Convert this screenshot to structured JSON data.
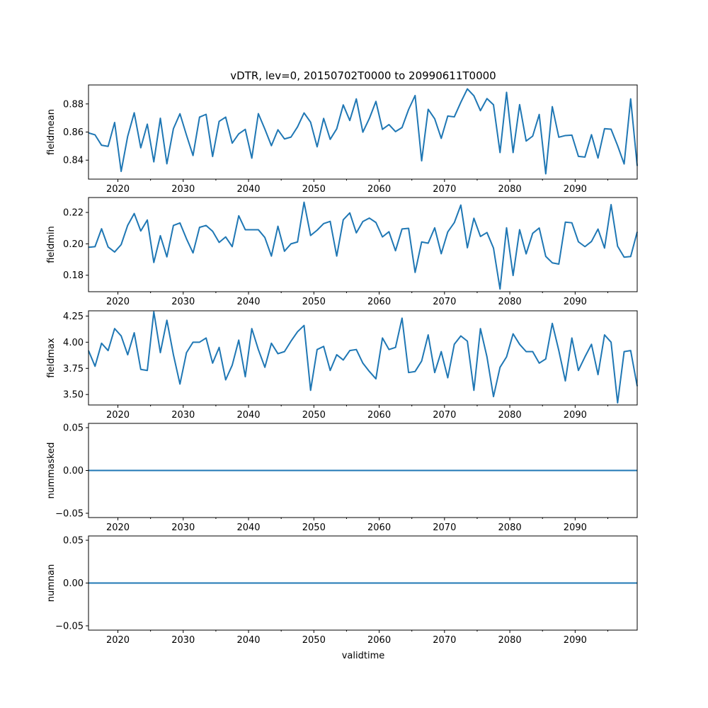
{
  "chart_data": {
    "type": "line",
    "title": "vDTR, lev=0, 20150702T0000 to 20990611T0000",
    "xlabel": "validtime",
    "xlim": [
      2015.5,
      2099.5
    ],
    "x_ticks": [
      2020,
      2030,
      2040,
      2050,
      2060,
      2070,
      2080,
      2090
    ],
    "x_tick_labels": [
      "2020",
      "2030",
      "2040",
      "2050",
      "2060",
      "2070",
      "2080",
      "2090"
    ],
    "series_color": "#1f77b4",
    "x": [
      2015.5,
      2016.5,
      2017.5,
      2018.5,
      2019.5,
      2020.5,
      2021.5,
      2022.5,
      2023.5,
      2024.5,
      2025.5,
      2026.5,
      2027.5,
      2028.5,
      2029.5,
      2030.5,
      2031.5,
      2032.5,
      2033.5,
      2034.5,
      2035.5,
      2036.5,
      2037.5,
      2038.5,
      2039.5,
      2040.5,
      2041.5,
      2042.5,
      2043.5,
      2044.5,
      2045.5,
      2046.5,
      2047.5,
      2048.5,
      2049.5,
      2050.5,
      2051.5,
      2052.5,
      2053.5,
      2054.5,
      2055.5,
      2056.5,
      2057.5,
      2058.5,
      2059.5,
      2060.5,
      2061.5,
      2062.5,
      2063.5,
      2064.5,
      2065.5,
      2066.5,
      2067.5,
      2068.5,
      2069.5,
      2070.5,
      2071.5,
      2072.5,
      2073.5,
      2074.5,
      2075.5,
      2076.5,
      2077.5,
      2078.5,
      2079.5,
      2080.5,
      2081.5,
      2082.5,
      2083.5,
      2084.5,
      2085.5,
      2086.5,
      2087.5,
      2088.5,
      2089.5,
      2090.5,
      2091.5,
      2092.5,
      2093.5,
      2094.5,
      2095.5,
      2096.5,
      2097.5,
      2098.5,
      2099.5
    ],
    "panels": [
      {
        "ylabel": "fieldmean",
        "ylim": [
          0.8265,
          0.8935
        ],
        "y_ticks": [
          0.84,
          0.86,
          0.88
        ],
        "y_tick_labels": [
          "0.84",
          "0.86",
          "0.88"
        ],
        "values": [
          0.8594,
          0.858,
          0.8506,
          0.8498,
          0.8668,
          0.832,
          0.857,
          0.8737,
          0.8488,
          0.8656,
          0.8388,
          0.8698,
          0.8374,
          0.8624,
          0.873,
          0.8578,
          0.8433,
          0.8706,
          0.8726,
          0.8426,
          0.8676,
          0.8706,
          0.8521,
          0.8587,
          0.8619,
          0.8414,
          0.8731,
          0.8621,
          0.8503,
          0.8616,
          0.8551,
          0.8564,
          0.8637,
          0.8736,
          0.867,
          0.8495,
          0.8697,
          0.8548,
          0.8623,
          0.8793,
          0.8682,
          0.8836,
          0.8599,
          0.8697,
          0.8818,
          0.8619,
          0.8653,
          0.8603,
          0.8632,
          0.876,
          0.886,
          0.8395,
          0.8762,
          0.8694,
          0.8555,
          0.8714,
          0.8708,
          0.8812,
          0.8907,
          0.8858,
          0.8752,
          0.8838,
          0.8794,
          0.8454,
          0.8883,
          0.8454,
          0.8795,
          0.8536,
          0.8571,
          0.8725,
          0.8303,
          0.8781,
          0.8563,
          0.8575,
          0.8578,
          0.8427,
          0.8422,
          0.8581,
          0.8415,
          0.8624,
          0.862,
          0.8503,
          0.8373,
          0.8836,
          0.8359
        ]
      },
      {
        "ylabel": "fieldmin",
        "ylim": [
          0.1695,
          0.2295
        ],
        "y_ticks": [
          0.18,
          0.2,
          0.22
        ],
        "y_tick_labels": [
          "0.18",
          "0.20",
          "0.22"
        ],
        "values": [
          0.1978,
          0.1982,
          0.2096,
          0.198,
          0.1948,
          0.1995,
          0.2118,
          0.2193,
          0.2082,
          0.2152,
          0.1881,
          0.2052,
          0.1917,
          0.2117,
          0.2133,
          0.2032,
          0.1942,
          0.2105,
          0.2117,
          0.208,
          0.2009,
          0.2044,
          0.1982,
          0.2179,
          0.209,
          0.209,
          0.209,
          0.204,
          0.1922,
          0.2112,
          0.1953,
          0.2,
          0.2012,
          0.2265,
          0.2053,
          0.2087,
          0.2129,
          0.2143,
          0.1922,
          0.2153,
          0.2197,
          0.207,
          0.2142,
          0.2164,
          0.2136,
          0.2044,
          0.2077,
          0.1956,
          0.2095,
          0.2099,
          0.1818,
          0.2012,
          0.2004,
          0.2102,
          0.1937,
          0.2076,
          0.2135,
          0.2247,
          0.1975,
          0.2163,
          0.2047,
          0.2072,
          0.1973,
          0.1712,
          0.2102,
          0.1798,
          0.209,
          0.1936,
          0.2067,
          0.2101,
          0.192,
          0.1879,
          0.1871,
          0.2138,
          0.2134,
          0.2013,
          0.1982,
          0.2015,
          0.2094,
          0.1973,
          0.225,
          0.1985,
          0.1915,
          0.1919,
          0.2076
        ]
      },
      {
        "ylabel": "fieldmax",
        "ylim": [
          3.4,
          4.3
        ],
        "y_ticks": [
          3.5,
          3.75,
          4.0,
          4.25
        ],
        "y_tick_labels": [
          "3.50",
          "3.75",
          "4.00",
          "4.25"
        ],
        "values": [
          3.92,
          3.77,
          3.99,
          3.92,
          4.13,
          4.06,
          3.88,
          4.09,
          3.74,
          3.73,
          4.29,
          3.9,
          4.21,
          3.88,
          3.6,
          3.9,
          4.0,
          4.0,
          4.04,
          3.8,
          3.95,
          3.64,
          3.78,
          4.02,
          3.67,
          4.13,
          3.93,
          3.76,
          3.99,
          3.89,
          3.91,
          4.01,
          4.1,
          4.16,
          3.54,
          3.93,
          3.96,
          3.73,
          3.88,
          3.83,
          3.92,
          3.93,
          3.8,
          3.72,
          3.65,
          4.04,
          3.93,
          3.95,
          4.23,
          3.71,
          3.72,
          3.82,
          4.07,
          3.71,
          3.91,
          3.66,
          3.98,
          4.06,
          4.01,
          3.54,
          4.13,
          3.86,
          3.48,
          3.76,
          3.86,
          4.08,
          3.98,
          3.91,
          3.91,
          3.8,
          3.84,
          4.18,
          3.92,
          3.63,
          4.04,
          3.73,
          3.86,
          3.98,
          3.69,
          4.07,
          4.0,
          3.42,
          3.91,
          3.92,
          3.58
        ]
      },
      {
        "ylabel": "nummasked",
        "ylim": [
          -0.055,
          0.055
        ],
        "y_ticks": [
          -0.05,
          0.0,
          0.05
        ],
        "y_tick_labels": [
          "−0.05",
          "0.00",
          "0.05"
        ],
        "constant": 0
      },
      {
        "ylabel": "numnan",
        "ylim": [
          -0.055,
          0.055
        ],
        "y_ticks": [
          -0.05,
          0.0,
          0.05
        ],
        "y_tick_labels": [
          "−0.05",
          "0.00",
          "0.05"
        ],
        "constant": 0
      }
    ]
  }
}
